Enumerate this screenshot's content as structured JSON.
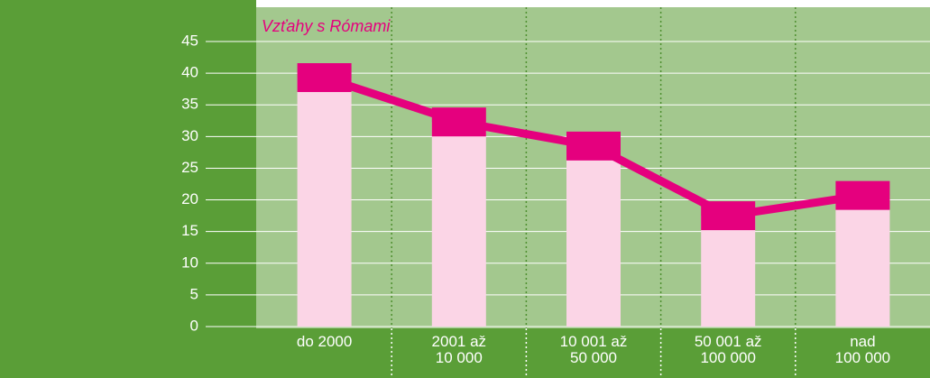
{
  "chart_data": {
    "type": "bar_line",
    "title": "Vzťahy s Rómami",
    "categories": [
      "do 2000",
      "2001 až\n10 000",
      "10 001 až\n50 000",
      "50 001 až\n100 000",
      "nad\n100 000"
    ],
    "values": [
      39.3,
      32.3,
      28.5,
      17.5,
      20.7
    ],
    "color": "#e5007e",
    "bar_color": "#fbd5e6",
    "ylim": [
      0,
      45
    ],
    "yticks": [
      0,
      5,
      10,
      15,
      20,
      25,
      30,
      35,
      40,
      45
    ],
    "grid": true
  }
}
